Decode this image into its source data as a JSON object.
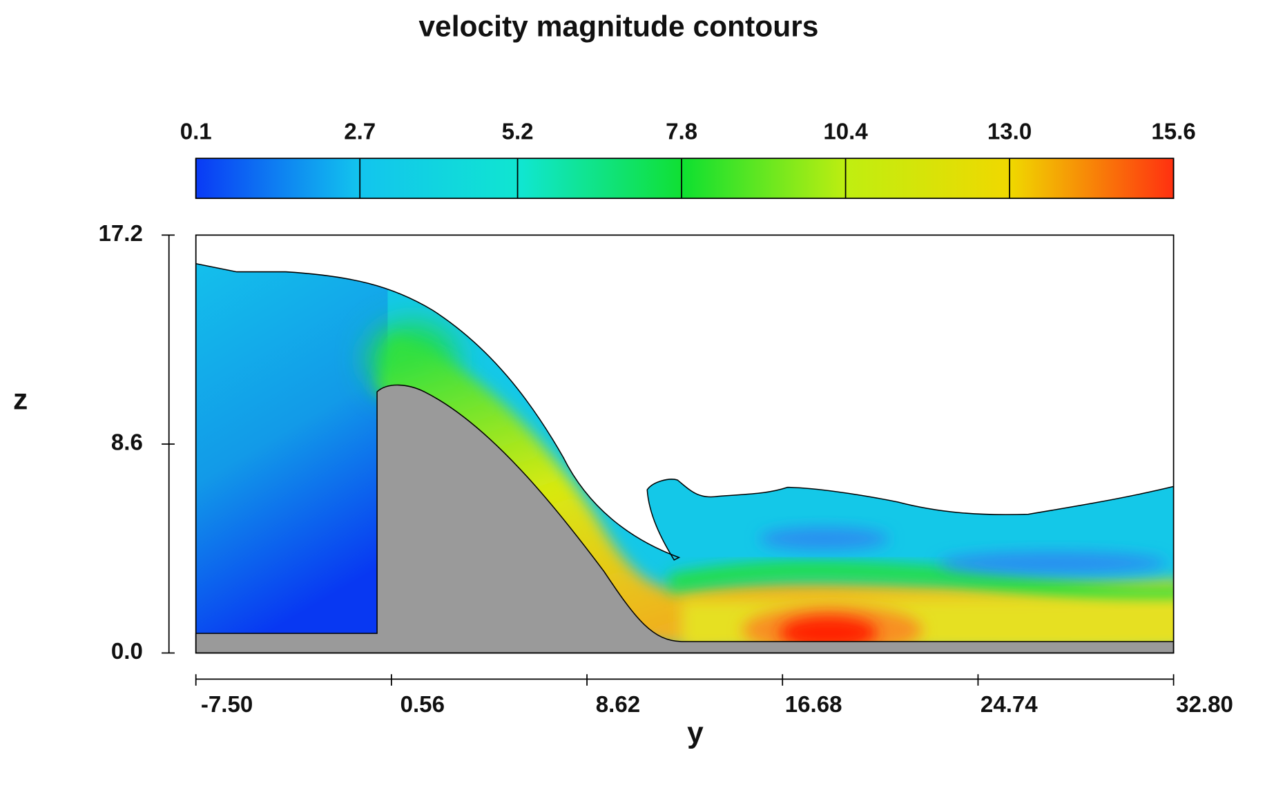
{
  "chart_data": {
    "type": "contour",
    "title": "velocity magnitude contours",
    "xlabel": "y",
    "ylabel": "z",
    "xlim": [
      -7.5,
      32.8
    ],
    "xticks": [
      {
        "value": -7.5,
        "label": "-7.50"
      },
      0.56,
      8.62,
      16.68,
      24.74,
      {
        "value": 32.8,
        "label": "32.80"
      }
    ],
    "ylim": [
      0,
      17.2
    ],
    "yticks": [
      {
        "value": 0,
        "label": "0.0"
      },
      8.6,
      17.2
    ],
    "colorbar": {
      "lim": [
        0.1,
        15.6
      ],
      "ticks": [
        0.1,
        2.7,
        5.2,
        7.8,
        10.4,
        {
          "value": 13,
          "label": "13.0"
        },
        15.6
      ],
      "colors": [
        "#0a3af5",
        "#12c4ee",
        "#10e6d0",
        "#10e030",
        "#c0ee10",
        "#f0d800",
        "#ff3010"
      ]
    }
  }
}
